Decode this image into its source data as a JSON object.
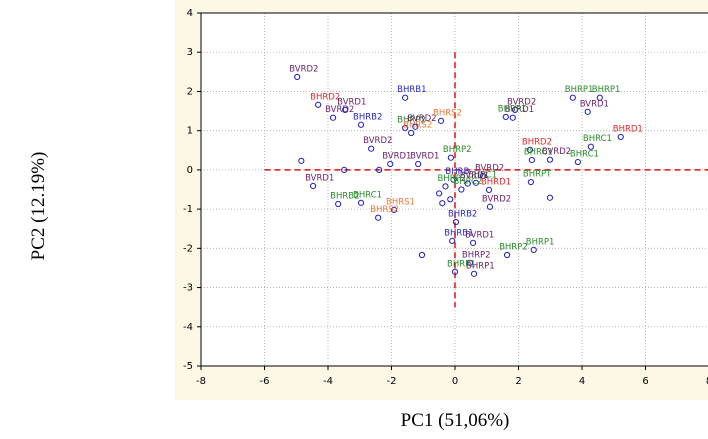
{
  "chart_data": {
    "type": "scatter",
    "xlabel": "PC1 (51,06%)",
    "ylabel": "PC2 (12.19%)",
    "xlim": [
      -8,
      8
    ],
    "ylim": [
      -5,
      4
    ],
    "xticks": [
      -8,
      -6,
      -4,
      -2,
      0,
      2,
      4,
      6,
      8
    ],
    "yticks": [
      -5,
      -4,
      -3,
      -2,
      -1,
      0,
      1,
      2,
      3,
      4
    ],
    "grid": true,
    "marker_color": "#1c1cc8",
    "reference_line_color": "#e01010",
    "x": [
      -4.97,
      -4.31,
      -3.84,
      -3.46,
      -2.96,
      -1.57,
      -1.57,
      -1.38,
      -1.25,
      -0.44,
      -2.64,
      -2.04,
      -1.16,
      -4.84,
      -4.47,
      -3.49,
      -2.39,
      -3.68,
      -2.96,
      -1.92,
      -2.42,
      -1.04,
      -0.13,
      0.88,
      0.66,
      1.07,
      1.1,
      0.03,
      -0.09,
      0.57,
      1.64,
      0.47,
      0.6,
      0.0,
      2.48,
      2.39,
      2.99,
      2.36,
      2.42,
      2.99,
      3.87,
      4.28,
      5.22,
      3.71,
      4.56,
      4.18,
      1.89,
      1.82,
      1.6,
      -0.05,
      -0.3,
      0.2,
      -0.5,
      -0.15,
      0.4,
      -0.4
    ],
    "values": [
      2.37,
      1.66,
      1.33,
      1.53,
      1.15,
      1.84,
      1.07,
      0.94,
      1.1,
      1.25,
      0.54,
      0.15,
      0.15,
      0.23,
      -0.41,
      0.0,
      0.0,
      -0.87,
      -0.84,
      -1.02,
      -1.22,
      -2.17,
      0.31,
      -0.15,
      -0.33,
      -0.51,
      -0.94,
      -1.33,
      -1.81,
      -1.86,
      -2.17,
      -2.37,
      -2.65,
      -2.6,
      -2.04,
      -0.31,
      -0.71,
      0.51,
      0.25,
      0.26,
      0.2,
      0.59,
      0.84,
      1.84,
      1.84,
      1.48,
      1.53,
      1.33,
      1.35,
      -0.25,
      -0.42,
      -0.5,
      -0.6,
      -0.75,
      -0.35,
      -0.85
    ],
    "labels": [
      "BVRD2",
      "BHRD2",
      "BVRD2",
      "BVRD1",
      "BHRB2",
      "BHRB1",
      "BHRP2",
      "BHRS2",
      "BVRD2",
      "BHRS2",
      "BVRD2",
      "BVRD1",
      "BVRD1",
      null,
      "BVRD1",
      null,
      null,
      "BHRB2",
      "BHRC1",
      "BHRS1",
      "BHRS2",
      null,
      "BHRP2",
      "BVRD2",
      "BHRC1",
      "BHRD1",
      "BVRD2",
      "BHRB2",
      "BHRB1",
      "BVRD1",
      "BHRP2",
      "BHRP2",
      "BHRP1",
      "BHRP1",
      "BHRP1",
      "BHRPT",
      null,
      "BHRD2",
      "BHRC1",
      "BVRD2",
      "BHRC1",
      "BHRC1",
      "BHRD1",
      "BHRP1",
      "BHRP1",
      "BVRD1",
      "BVRD2",
      "BVRD1",
      "BHRP1",
      "BHRB",
      "BHRP2",
      "BHRC2",
      null,
      null,
      "BVRD1",
      null
    ],
    "label_colors": [
      "#6b1e6b",
      "#e8282b",
      "#6b1e6b",
      "#6b1e6b",
      "#2828c8",
      "#2828c8",
      "#2a8a2a",
      "#f07838",
      "#6b1e6b",
      "#f07838",
      "#6b1e6b",
      "#6b1e6b",
      "#6b1e6b",
      "#6b1e6b",
      "#6b1e6b",
      "#6b1e6b",
      "#6b1e6b",
      "#2a8a2a",
      "#2a8a2a",
      "#f07838",
      "#f07838",
      "#6b1e6b",
      "#2a8a2a",
      "#6b1e6b",
      "#2a8a2a",
      "#e8282b",
      "#6b1e6b",
      "#2828c8",
      "#2828c8",
      "#6b1e6b",
      "#2a8a2a",
      "#6b1e6b",
      "#6b1e6b",
      "#2a8a2a",
      "#2a8a2a",
      "#2a8a2a",
      "#6b1e6b",
      "#e8282b",
      "#2a8a2a",
      "#6b1e6b",
      "#2a8a2a",
      "#2a8a2a",
      "#e8282b",
      "#2a8a2a",
      "#2a8a2a",
      "#6b1e6b",
      "#6b1e6b",
      "#6b1e6b",
      "#2a8a2a",
      "#2828c8",
      "#2a8a2a",
      "#2a8a2a",
      "#6b1e6b",
      "#6b1e6b",
      "#6b1e6b",
      "#6b1e6b"
    ]
  }
}
